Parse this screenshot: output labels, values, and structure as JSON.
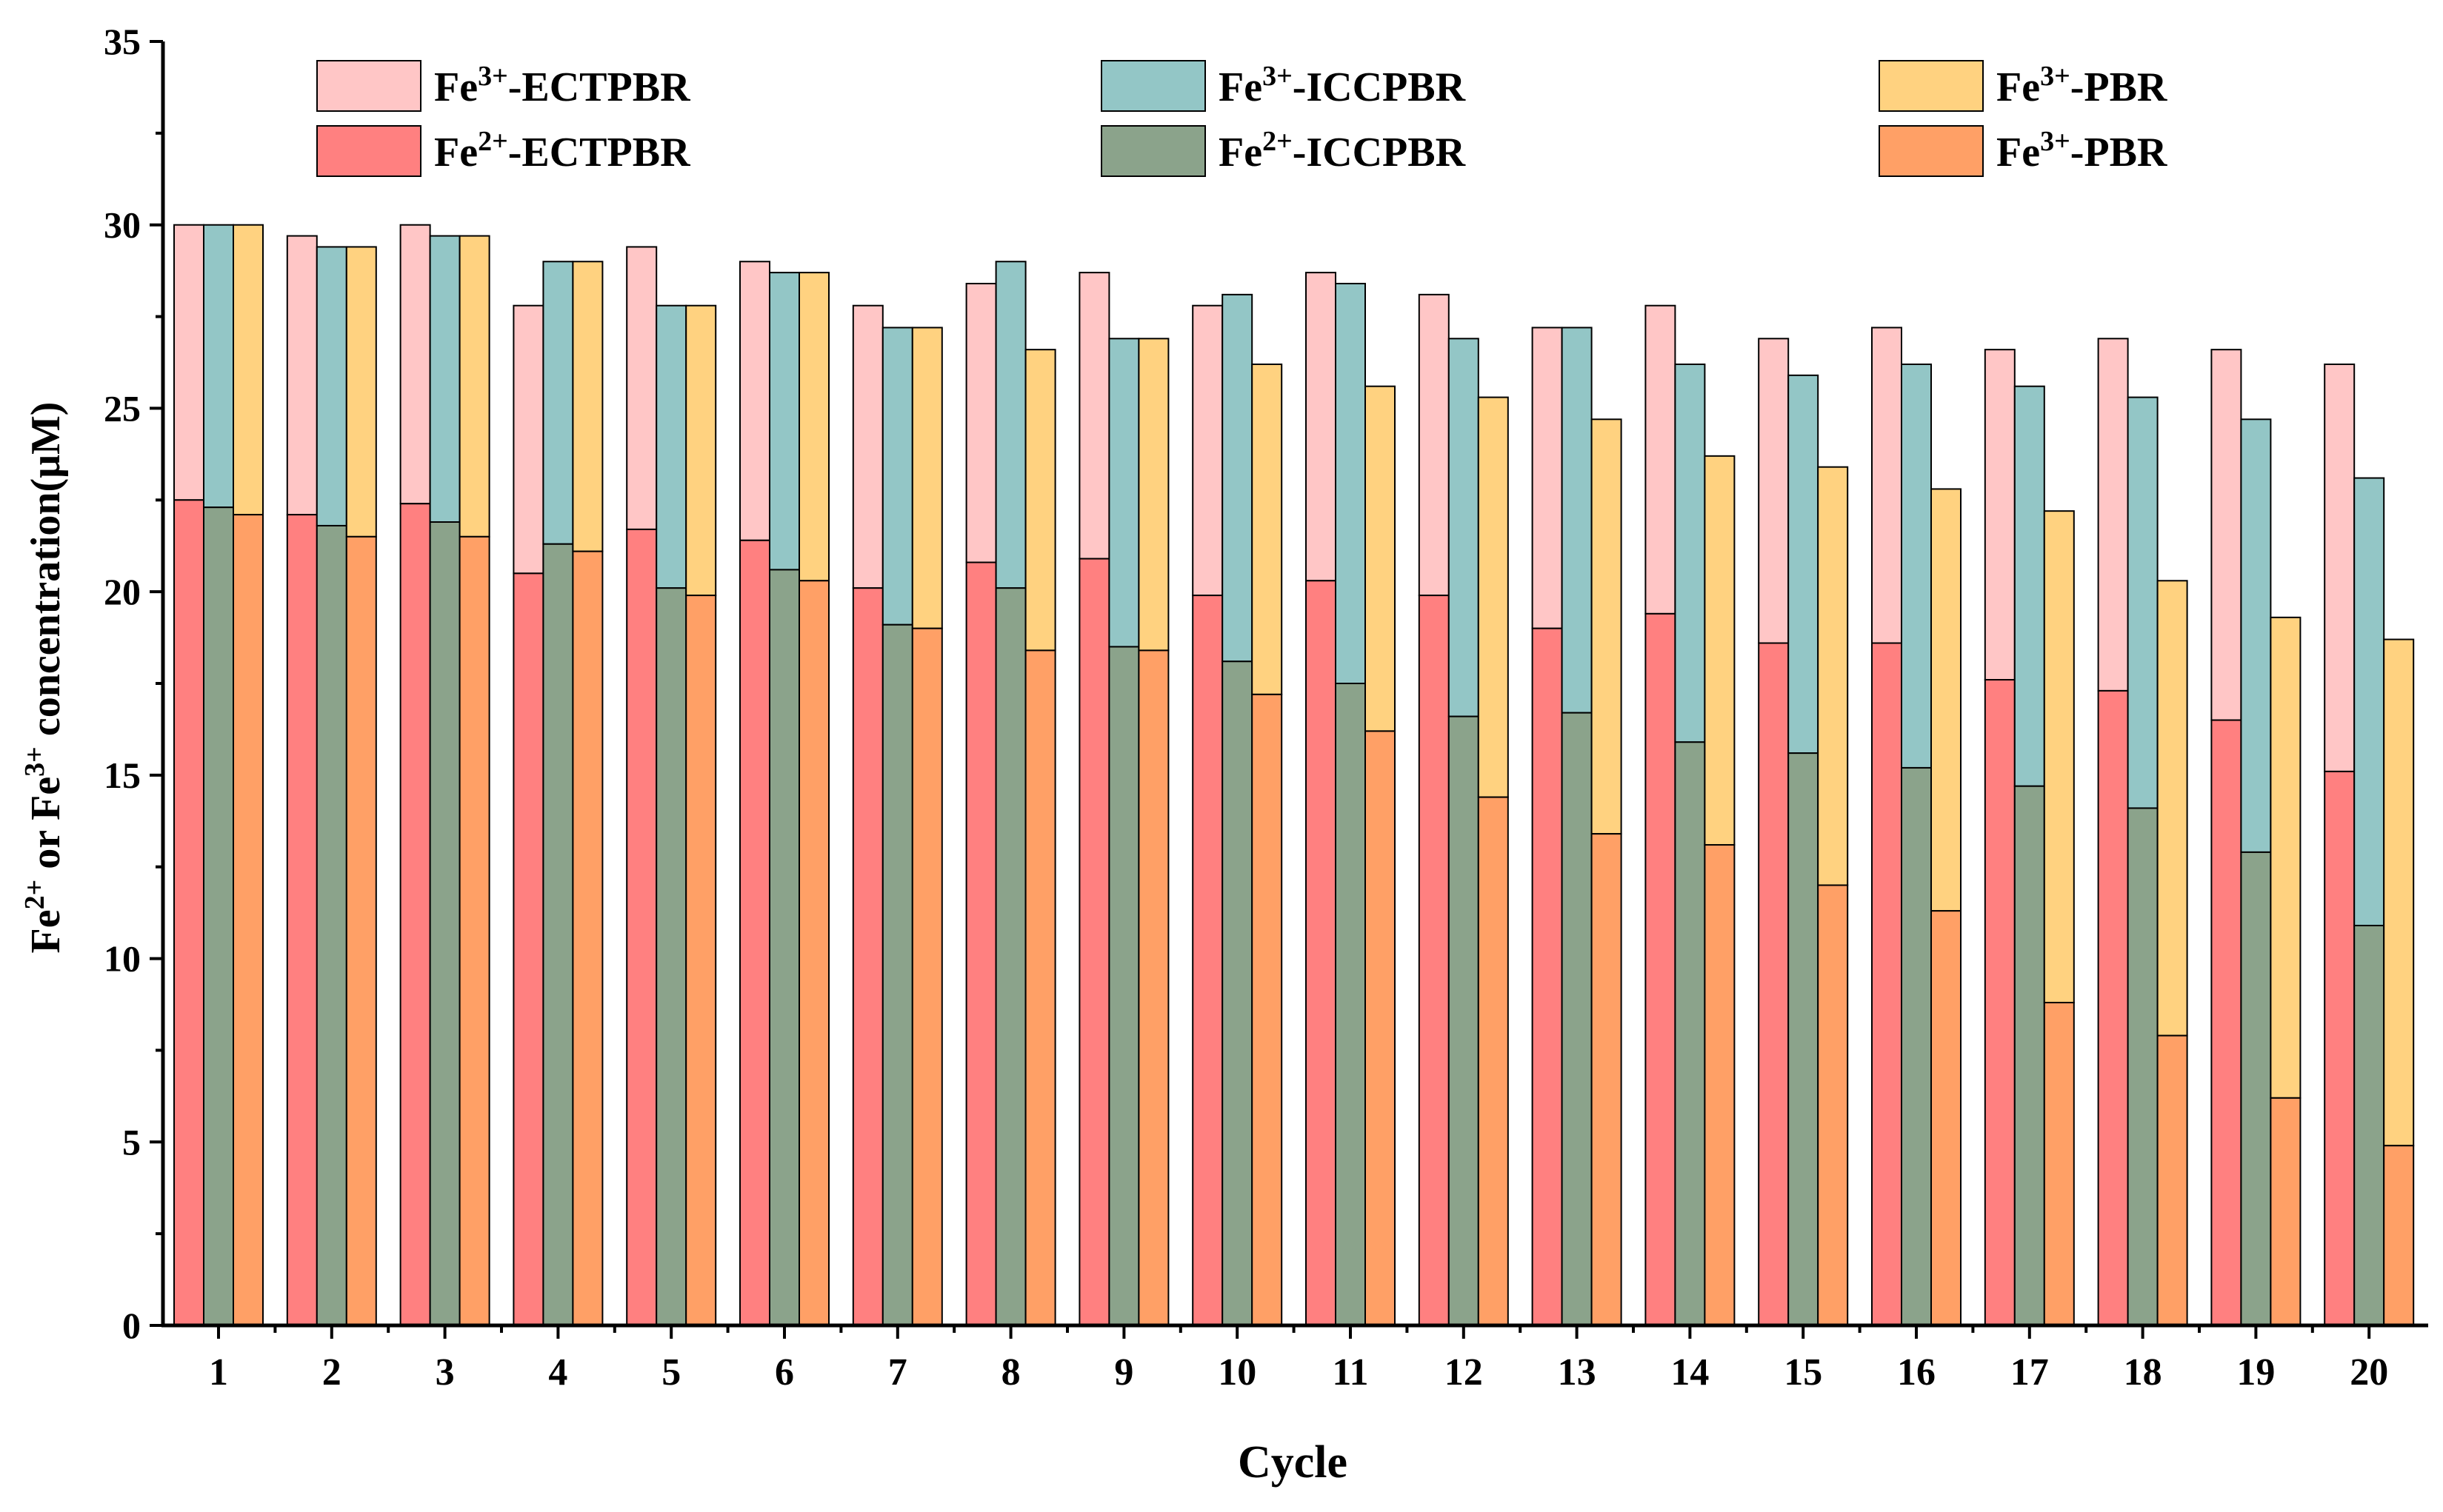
{
  "chart_data": {
    "type": "bar",
    "stacked_groups": true,
    "title": "",
    "xlabel": "Cycle",
    "ylabel": {
      "parts": [
        "Fe",
        "2+",
        " or Fe",
        "3+",
        " concentration(μM)"
      ]
    },
    "ylim": [
      0,
      35
    ],
    "yticks": [
      0,
      5,
      10,
      15,
      20,
      25,
      30,
      35
    ],
    "categories": [
      "1",
      "2",
      "3",
      "4",
      "5",
      "6",
      "7",
      "8",
      "9",
      "10",
      "11",
      "12",
      "13",
      "14",
      "15",
      "16",
      "17",
      "18",
      "19",
      "20"
    ],
    "groups": [
      {
        "name": "ECTPBR",
        "total_label": "Fe3+-ECTPBR",
        "lower_label": "Fe2+-ECTPBR",
        "total_color": "#FFC6C6",
        "lower_color": "#FF8080",
        "total": [
          30.0,
          29.7,
          30.0,
          27.8,
          29.4,
          29.0,
          27.8,
          28.4,
          28.7,
          27.8,
          28.7,
          28.1,
          27.2,
          27.8,
          26.9,
          27.2,
          26.6,
          26.9,
          26.6,
          26.2
        ],
        "lower": [
          22.5,
          22.1,
          22.4,
          20.5,
          21.7,
          21.4,
          20.1,
          20.8,
          20.9,
          19.9,
          20.3,
          19.9,
          19.0,
          19.4,
          18.6,
          18.6,
          17.6,
          17.3,
          16.5,
          15.1
        ]
      },
      {
        "name": "ICCPBR",
        "total_label": "Fe3+-ICCPBR",
        "lower_label": "Fe2+-ICCPBR",
        "total_color": "#93C6C6",
        "lower_color": "#8BA38B",
        "total": [
          30.0,
          29.4,
          29.7,
          29.0,
          27.8,
          28.7,
          27.2,
          29.0,
          26.9,
          28.1,
          28.4,
          26.9,
          27.2,
          26.2,
          25.9,
          26.2,
          25.6,
          25.3,
          24.7,
          23.1
        ],
        "lower": [
          22.3,
          21.8,
          21.9,
          21.3,
          20.1,
          20.6,
          19.1,
          20.1,
          18.5,
          18.1,
          17.5,
          16.6,
          16.7,
          15.9,
          15.6,
          15.2,
          14.7,
          14.1,
          12.9,
          10.9
        ]
      },
      {
        "name": "PBR",
        "total_label": "Fe3+-PBR",
        "lower_label": "Fe3+-PBR",
        "total_color": "#FFD280",
        "lower_color": "#FFA066",
        "total": [
          30.0,
          29.4,
          29.7,
          29.0,
          27.8,
          28.7,
          27.2,
          26.6,
          26.9,
          26.2,
          25.6,
          25.3,
          24.7,
          23.7,
          23.4,
          22.8,
          22.2,
          20.3,
          19.3,
          18.7
        ],
        "lower": [
          22.1,
          21.5,
          21.5,
          21.1,
          19.9,
          20.3,
          19.0,
          18.4,
          18.4,
          17.2,
          16.2,
          14.4,
          13.4,
          13.1,
          12.0,
          11.3,
          8.8,
          7.9,
          6.2,
          4.9
        ]
      }
    ],
    "legend": {
      "placement": "top",
      "entries": [
        {
          "ion": "Fe",
          "charge": "3+",
          "suffix": "-ECTPBR",
          "color": "#FFC6C6"
        },
        {
          "ion": "Fe",
          "charge": "3+",
          "suffix": "-ICCPBR",
          "color": "#93C6C6"
        },
        {
          "ion": "Fe",
          "charge": "3+",
          "suffix": "-PBR",
          "color": "#FFD280"
        },
        {
          "ion": "Fe",
          "charge": "2+",
          "suffix": "-ECTPBR",
          "color": "#FF8080"
        },
        {
          "ion": "Fe",
          "charge": "2+",
          "suffix": "-ICCPBR",
          "color": "#8BA38B"
        },
        {
          "ion": "Fe",
          "charge": "3+",
          "suffix": "-PBR",
          "color": "#FFA066"
        }
      ]
    },
    "grid": false
  }
}
